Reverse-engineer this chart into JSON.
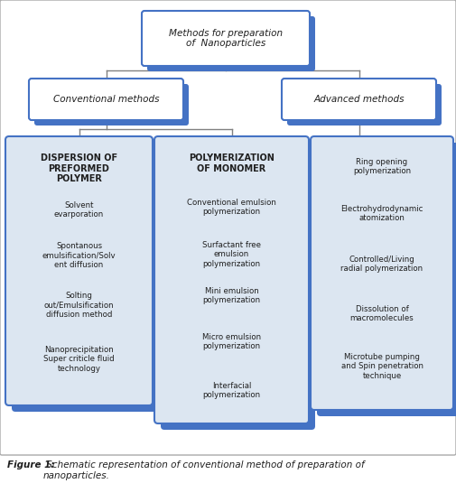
{
  "title": "Methods for preparation\nof  Nanoparticles",
  "conv_label": "Conventional methods",
  "adv_label": "Advanced methods",
  "disp_title": "DISPERSION OF\nPREFORMED\nPOLYMER",
  "poly_title": "POLYMERIZATION\nOF MONOMER",
  "disp_items": [
    "Solvent\nevarporation",
    "Spontanous\nemulsification/Solv\nent diffusion",
    "Solting\nout/Emulsification\ndiffusion method",
    "Nanoprecipitation\nSuper criticle fluid\ntechnology"
  ],
  "poly_items": [
    "Conventional emulsion\npolymerization",
    "Surfactant free\nemulsion\npolymerization",
    "Mini emulsion\npolymerization",
    "Micro emulsion\npolymerization",
    "Interfacial\npolymerization"
  ],
  "adv_items": [
    "Ring opening\npolymerization",
    "Electrohydrodynamic\natomization",
    "Controlled/Living\nradial polymerization",
    "Dissolution of\nmacromolecules",
    "Microtube pumping\nand Spin penetration\ntechnique"
  ],
  "caption_bold": "Figure 1:",
  "caption_rest": " Schematic representation of conventional method of preparation of\nnanoparticles.",
  "blue": "#4472C4",
  "blue_dark": "#2E5FAA",
  "white": "#FFFFFF",
  "light_blue": "#DCE6F1",
  "text_color": "#1F1F1F",
  "line_color": "#808080",
  "bg": "#FFFFFF"
}
